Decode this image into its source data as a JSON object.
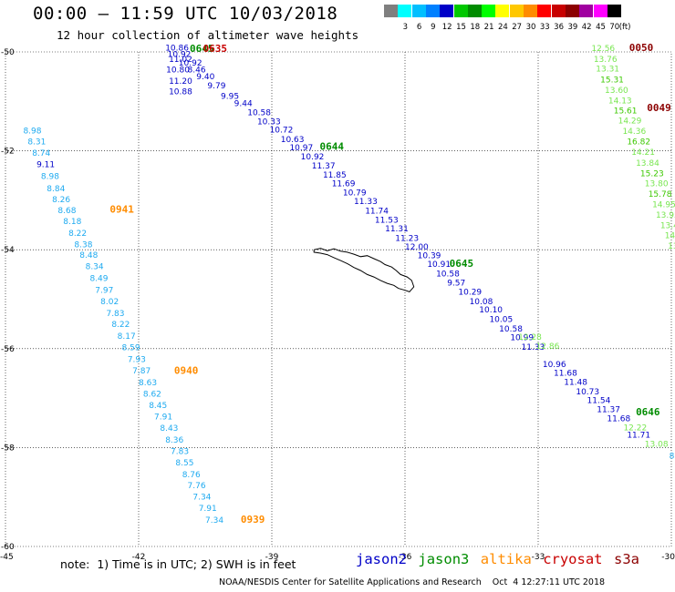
{
  "header": {
    "title": "00:00 – 11:59 UTC 10/03/2018",
    "subtitle": "12 hour collection of altimeter wave heights"
  },
  "legend": {
    "unit": "(ft)",
    "bins": [
      {
        "label": "",
        "color": "#7f7f7f"
      },
      {
        "label": "3",
        "color": "#00ffff"
      },
      {
        "label": "6",
        "color": "#00bfff"
      },
      {
        "label": "9",
        "color": "#0080ff"
      },
      {
        "label": "12",
        "color": "#0000c8"
      },
      {
        "label": "15",
        "color": "#00c800"
      },
      {
        "label": "18",
        "color": "#008c00"
      },
      {
        "label": "21",
        "color": "#00ff00"
      },
      {
        "label": "24",
        "color": "#ffff00"
      },
      {
        "label": "27",
        "color": "#ffc800"
      },
      {
        "label": "30",
        "color": "#ff8c00"
      },
      {
        "label": "33",
        "color": "#ff0000"
      },
      {
        "label": "36",
        "color": "#c80000"
      },
      {
        "label": "39",
        "color": "#8c0000"
      },
      {
        "label": "42",
        "color": "#a000a0"
      },
      {
        "label": "45",
        "color": "#ff00ff"
      },
      {
        "label": "70",
        "color": "#000000"
      }
    ]
  },
  "map": {
    "lon_range": [
      -45,
      -30
    ],
    "lat_range": [
      -60,
      -50
    ],
    "lon_ticks": [
      "-45",
      "-42",
      "-39",
      "-36",
      "-33",
      "-30"
    ],
    "lat_ticks": [
      "-50",
      "-52",
      "-54",
      "-56",
      "-58",
      "-60"
    ],
    "colors": {
      "jason2": "#0000c8",
      "jason3": "#008c00",
      "altika": "#ff8c00",
      "cryosat": "#c80000",
      "s3a": "#8c0000",
      "light_blue": "#1eaaf0",
      "light_green": "#78e650",
      "medium_green": "#3cc800"
    },
    "tracks": [
      {
        "name": "altika-track-0941",
        "time": "0941",
        "time_color": "altika",
        "time_lonlat": [
          -42.65,
          -53.25
        ],
        "points": [
          {
            "v": "8.98",
            "lon": -44.6,
            "lat": -51.65,
            "c": "light_blue"
          },
          {
            "v": "8.31",
            "lon": -44.5,
            "lat": -51.87,
            "c": "light_blue"
          },
          {
            "v": "8.74",
            "lon": -44.4,
            "lat": -52.1,
            "c": "light_blue"
          },
          {
            "v": "9.11",
            "lon": -44.3,
            "lat": -52.33,
            "c": "jason2"
          },
          {
            "v": "8.98",
            "lon": -44.2,
            "lat": -52.57,
            "c": "light_blue"
          },
          {
            "v": "8.84",
            "lon": -44.07,
            "lat": -52.82,
            "c": "light_blue"
          },
          {
            "v": "8.26",
            "lon": -43.95,
            "lat": -53.04,
            "c": "light_blue"
          },
          {
            "v": "8.68",
            "lon": -43.82,
            "lat": -53.26,
            "c": "light_blue"
          },
          {
            "v": "8.18",
            "lon": -43.7,
            "lat": -53.48,
            "c": "light_blue"
          },
          {
            "v": "8.22",
            "lon": -43.58,
            "lat": -53.72,
            "c": "light_blue"
          },
          {
            "v": "8.38",
            "lon": -43.45,
            "lat": -53.95,
            "c": "light_blue"
          },
          {
            "v": "8.48",
            "lon": -43.33,
            "lat": -54.16,
            "c": "light_blue"
          },
          {
            "v": "8.34",
            "lon": -43.2,
            "lat": -54.39,
            "c": "light_blue"
          },
          {
            "v": "8.49",
            "lon": -43.1,
            "lat": -54.63,
            "c": "light_blue"
          },
          {
            "v": "7.97",
            "lon": -42.98,
            "lat": -54.87,
            "c": "light_blue"
          },
          {
            "v": "8.02",
            "lon": -42.86,
            "lat": -55.1,
            "c": "light_blue"
          },
          {
            "v": "7.83",
            "lon": -42.73,
            "lat": -55.34,
            "c": "light_blue"
          },
          {
            "v": "8.22",
            "lon": -42.61,
            "lat": -55.56,
            "c": "light_blue"
          },
          {
            "v": "8.17",
            "lon": -42.48,
            "lat": -55.8,
            "c": "light_blue"
          },
          {
            "v": "8.59",
            "lon": -42.38,
            "lat": -56.03,
            "c": "light_blue"
          },
          {
            "v": "7.93",
            "lon": -42.25,
            "lat": -56.27,
            "c": "light_blue"
          },
          {
            "v": "7.87",
            "lon": -42.14,
            "lat": -56.5,
            "c": "light_blue"
          }
        ]
      },
      {
        "name": "altika-track-0940",
        "time": "0940",
        "time_color": "altika",
        "time_lonlat": [
          -41.2,
          -56.51
        ],
        "points": [
          {
            "v": "8.63",
            "lon": -42.0,
            "lat": -56.74,
            "c": "light_blue"
          },
          {
            "v": "8.62",
            "lon": -41.9,
            "lat": -56.97,
            "c": "light_blue"
          },
          {
            "v": "8.45",
            "lon": -41.77,
            "lat": -57.2,
            "c": "light_blue"
          },
          {
            "v": "7.91",
            "lon": -41.65,
            "lat": -57.43,
            "c": "light_blue"
          },
          {
            "v": "8.43",
            "lon": -41.52,
            "lat": -57.66,
            "c": "light_blue"
          },
          {
            "v": "8.36",
            "lon": -41.4,
            "lat": -57.9,
            "c": "light_blue"
          },
          {
            "v": "7.83",
            "lon": -41.28,
            "lat": -58.13,
            "c": "light_blue"
          },
          {
            "v": "8.55",
            "lon": -41.17,
            "lat": -58.36,
            "c": "light_blue"
          },
          {
            "v": "8.76",
            "lon": -41.02,
            "lat": -58.6,
            "c": "light_blue"
          },
          {
            "v": "7.76",
            "lon": -40.9,
            "lat": -58.82,
            "c": "light_blue"
          },
          {
            "v": "7.34",
            "lon": -40.78,
            "lat": -59.05,
            "c": "light_blue"
          },
          {
            "v": "7.91",
            "lon": -40.65,
            "lat": -59.28,
            "c": "light_blue"
          },
          {
            "v": "7.34",
            "lon": -40.5,
            "lat": -59.52,
            "c": "light_blue"
          }
        ]
      },
      {
        "name": "altika-track-0939",
        "time": "0939",
        "time_color": "altika",
        "time_lonlat": [
          -39.7,
          -59.52
        ],
        "points": []
      },
      {
        "name": "jason2-track-0645",
        "time": "0645",
        "time_color": "jason3",
        "time_lonlat": [
          -35.0,
          -54.35
        ],
        "points": [
          {
            "v": "10.86",
            "lon": -41.4,
            "lat": -49.97,
            "c": "jason2"
          },
          {
            "v": "10.92",
            "lon": -41.35,
            "lat": -50.1,
            "c": "jason2"
          },
          {
            "v": "11.02",
            "lon": -41.32,
            "lat": -50.2,
            "c": "jason2"
          },
          {
            "v": "10.92",
            "lon": -41.1,
            "lat": -50.28,
            "c": "jason2"
          },
          {
            "v": "10.80",
            "lon": -41.38,
            "lat": -50.41,
            "c": "jason2"
          },
          {
            "v": "8.46",
            "lon": -40.9,
            "lat": -50.41,
            "c": "jason2"
          },
          {
            "v": "9.40",
            "lon": -40.7,
            "lat": -50.55,
            "c": "jason2"
          },
          {
            "v": "11.20",
            "lon": -41.32,
            "lat": -50.64,
            "c": "jason2"
          },
          {
            "v": "9.79",
            "lon": -40.45,
            "lat": -50.74,
            "c": "jason2"
          },
          {
            "v": "10.88",
            "lon": -41.32,
            "lat": -50.86,
            "c": "jason2"
          },
          {
            "v": "9.95",
            "lon": -40.15,
            "lat": -50.95,
            "c": "jason2"
          },
          {
            "v": "9.44",
            "lon": -39.85,
            "lat": -51.1,
            "c": "jason2"
          },
          {
            "v": "10.58",
            "lon": -39.55,
            "lat": -51.28,
            "c": "jason2"
          },
          {
            "v": "10.33",
            "lon": -39.33,
            "lat": -51.46,
            "c": "jason2"
          },
          {
            "v": "10.72",
            "lon": -39.05,
            "lat": -51.63,
            "c": "jason2"
          },
          {
            "v": "10.63",
            "lon": -38.8,
            "lat": -51.82,
            "c": "jason2"
          },
          {
            "v": "10.97",
            "lon": -38.6,
            "lat": -51.99,
            "c": "jason2"
          },
          {
            "v": "10.92",
            "lon": -38.35,
            "lat": -52.17,
            "c": "jason2"
          },
          {
            "v": "11.37",
            "lon": -38.1,
            "lat": -52.36,
            "c": "jason2"
          },
          {
            "v": "11.85",
            "lon": -37.85,
            "lat": -52.54,
            "c": "jason2"
          },
          {
            "v": "11.69",
            "lon": -37.65,
            "lat": -52.72,
            "c": "jason2"
          },
          {
            "v": "10.79",
            "lon": -37.4,
            "lat": -52.9,
            "c": "jason2"
          },
          {
            "v": "11.33",
            "lon": -37.15,
            "lat": -53.08,
            "c": "jason2"
          },
          {
            "v": "11.74",
            "lon": -36.9,
            "lat": -53.27,
            "c": "jason2"
          },
          {
            "v": "11.53",
            "lon": -36.68,
            "lat": -53.45,
            "c": "jason2"
          },
          {
            "v": "11.31",
            "lon": -36.45,
            "lat": -53.63,
            "c": "jason2"
          },
          {
            "v": "11.23",
            "lon": -36.22,
            "lat": -53.82,
            "c": "jason2"
          },
          {
            "v": "12.00",
            "lon": -36.0,
            "lat": -54.0,
            "c": "jason2"
          },
          {
            "v": "10.39",
            "lon": -35.72,
            "lat": -54.17,
            "c": "jason2"
          },
          {
            "v": "10.91",
            "lon": -35.5,
            "lat": -54.35,
            "c": "jason2"
          },
          {
            "v": "10.58",
            "lon": -35.3,
            "lat": -54.54,
            "c": "jason2"
          },
          {
            "v": "9.57",
            "lon": -35.05,
            "lat": -54.72,
            "c": "jason2"
          },
          {
            "v": "10.29",
            "lon": -34.8,
            "lat": -54.91,
            "c": "jason2"
          },
          {
            "v": "10.08",
            "lon": -34.55,
            "lat": -55.1,
            "c": "jason2"
          },
          {
            "v": "10.10",
            "lon": -34.33,
            "lat": -55.27,
            "c": "jason2"
          },
          {
            "v": "10.05",
            "lon": -34.1,
            "lat": -55.46,
            "c": "jason2"
          },
          {
            "v": "10.58",
            "lon": -33.88,
            "lat": -55.65,
            "c": "jason2"
          },
          {
            "v": "10.99",
            "lon": -33.63,
            "lat": -55.83,
            "c": "jason2"
          },
          {
            "v": "11.33",
            "lon": -33.38,
            "lat": -56.02,
            "c": "jason2"
          }
        ]
      },
      {
        "name": "jason2-track-0646",
        "time": "0646",
        "time_color": "jason3",
        "time_lonlat": [
          -30.8,
          -57.35
        ],
        "points": [
          {
            "v": "10.96",
            "lon": -32.9,
            "lat": -56.37,
            "c": "jason2"
          },
          {
            "v": "11.68",
            "lon": -32.65,
            "lat": -56.55,
            "c": "jason2"
          },
          {
            "v": "11.48",
            "lon": -32.42,
            "lat": -56.73,
            "c": "jason2"
          },
          {
            "v": "10.73",
            "lon": -32.15,
            "lat": -56.92,
            "c": "jason2"
          },
          {
            "v": "11.54",
            "lon": -31.9,
            "lat": -57.1,
            "c": "jason2"
          },
          {
            "v": "11.37",
            "lon": -31.68,
            "lat": -57.28,
            "c": "jason2"
          },
          {
            "v": "11.68",
            "lon": -31.45,
            "lat": -57.47,
            "c": "jason2"
          },
          {
            "v": "11.71",
            "lon": -31.0,
            "lat": -57.8,
            "c": "jason2"
          }
        ]
      },
      {
        "name": "jason3-track-0645",
        "time": "0645",
        "time_color": "jason3",
        "time_lonlat": [
          -40.85,
          -50.0
        ],
        "points": []
      },
      {
        "name": "jason3-track-0644",
        "time": "0644",
        "time_color": "jason3",
        "time_lonlat": [
          -37.92,
          -51.98
        ],
        "points": []
      },
      {
        "name": "jason3-light-segment",
        "time": "",
        "time_color": "jason3",
        "time_lonlat": [
          0,
          0
        ],
        "points": [
          {
            "v": "12.28",
            "lon": -33.45,
            "lat": -55.82,
            "c": "light_green"
          },
          {
            "v": "12.86",
            "lon": -33.05,
            "lat": -56.0,
            "c": "light_green"
          },
          {
            "v": "12.22",
            "lon": -31.08,
            "lat": -57.65,
            "c": "light_green"
          },
          {
            "v": "13.08",
            "lon": -30.6,
            "lat": -57.98,
            "c": "light_green"
          },
          {
            "v": "8.",
            "lon": -30.05,
            "lat": -58.22,
            "c": "light_blue"
          }
        ]
      },
      {
        "name": "cryosat-track-0635",
        "time": "0635",
        "time_color": "cryosat",
        "time_lonlat": [
          -40.55,
          -50.0
        ],
        "points": []
      },
      {
        "name": "s3a-track-0050",
        "time": "0050",
        "time_color": "s3a",
        "time_lonlat": [
          -30.95,
          -49.98
        ],
        "points": [
          {
            "v": "12.56",
            "lon": -31.8,
            "lat": -49.98,
            "c": "light_green"
          },
          {
            "v": "13.76",
            "lon": -31.75,
            "lat": -50.2,
            "c": "light_green"
          },
          {
            "v": "13.31",
            "lon": -31.7,
            "lat": -50.4,
            "c": "light_green"
          },
          {
            "v": "15.31",
            "lon": -31.6,
            "lat": -50.62,
            "c": "medium_green"
          },
          {
            "v": "13.60",
            "lon": -31.5,
            "lat": -50.83,
            "c": "light_green"
          },
          {
            "v": "14.13",
            "lon": -31.42,
            "lat": -51.04,
            "c": "light_green"
          },
          {
            "v": "15.61",
            "lon": -31.3,
            "lat": -51.24,
            "c": "medium_green"
          },
          {
            "v": "14.29",
            "lon": -31.2,
            "lat": -51.45,
            "c": "light_green"
          },
          {
            "v": "14.36",
            "lon": -31.1,
            "lat": -51.66,
            "c": "light_green"
          },
          {
            "v": "16.82",
            "lon": -31.0,
            "lat": -51.87,
            "c": "medium_green"
          },
          {
            "v": "14.21",
            "lon": -30.9,
            "lat": -52.08,
            "c": "light_green"
          },
          {
            "v": "13.84",
            "lon": -30.8,
            "lat": -52.3,
            "c": "light_green"
          },
          {
            "v": "15.23",
            "lon": -30.7,
            "lat": -52.51,
            "c": "medium_green"
          },
          {
            "v": "13.80",
            "lon": -30.6,
            "lat": -52.72,
            "c": "light_green"
          },
          {
            "v": "15.78",
            "lon": -30.52,
            "lat": -52.93,
            "c": "medium_green"
          },
          {
            "v": "14.95",
            "lon": -30.43,
            "lat": -53.14,
            "c": "light_green"
          },
          {
            "v": "13.95",
            "lon": -30.35,
            "lat": -53.35,
            "c": "light_green"
          },
          {
            "v": "13.4",
            "lon": -30.25,
            "lat": -53.56,
            "c": "light_green"
          },
          {
            "v": "14.",
            "lon": -30.15,
            "lat": -53.77,
            "c": "light_green"
          },
          {
            "v": "13",
            "lon": -30.08,
            "lat": -53.98,
            "c": "light_green"
          }
        ]
      },
      {
        "name": "s3a-track-0049",
        "time": "0049",
        "time_color": "s3a",
        "time_lonlat": [
          -30.55,
          -51.2
        ],
        "points": []
      }
    ]
  },
  "footer": {
    "note": "note:  1) Time is in UTC; 2) SWH is in feet",
    "satellites": [
      {
        "label": "jason2",
        "color": "#0000c8"
      },
      {
        "label": "jason3",
        "color": "#008c00"
      },
      {
        "label": "altika",
        "color": "#ff8c00"
      },
      {
        "label": "cryosat",
        "color": "#c80000"
      },
      {
        "label": "s3a",
        "color": "#8c0000"
      }
    ],
    "credit": "NOAA/NESDIS Center for Satellite Applications and Research    Oct  4 12:27:11 UTC 2018"
  }
}
